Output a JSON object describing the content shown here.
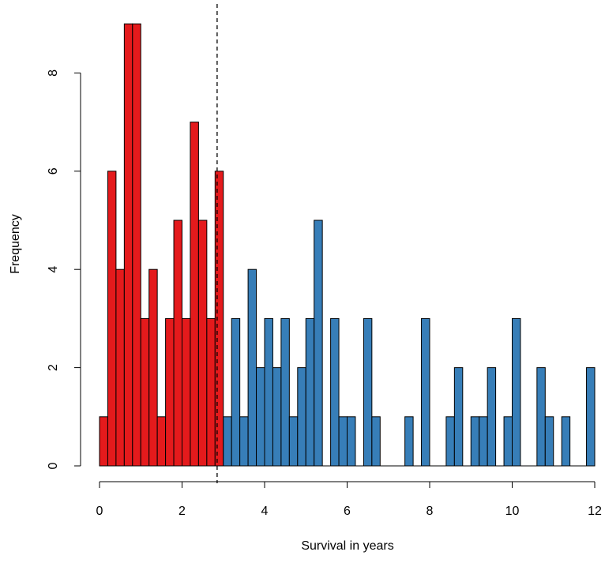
{
  "chart_data": {
    "type": "bar",
    "subtype": "histogram",
    "title": "",
    "xlabel": "Survival in years",
    "ylabel": "Frequency",
    "xlim": [
      0,
      12
    ],
    "ylim": [
      0,
      9
    ],
    "xticks": [
      0,
      2,
      4,
      6,
      8,
      10,
      12
    ],
    "yticks": [
      0,
      2,
      4,
      6,
      8
    ],
    "bin_width": 0.2,
    "threshold": 2.85,
    "grid": false,
    "legend": "none",
    "colors": {
      "below_threshold": "#e41a1c",
      "above_threshold": "#377eb8",
      "outline": "#000000"
    },
    "bins_x0": [
      0,
      0.2,
      0.4,
      0.6,
      0.8,
      1.0,
      1.2,
      1.4,
      1.6,
      1.8,
      2.0,
      2.2,
      2.4,
      2.6,
      2.8,
      3.0,
      3.2,
      3.4,
      3.6,
      3.8,
      4.0,
      4.2,
      4.4,
      4.6,
      4.8,
      5.0,
      5.2,
      5.4,
      5.6,
      5.8,
      6.0,
      6.2,
      6.4,
      6.6,
      6.8,
      7.0,
      7.2,
      7.4,
      7.6,
      7.8,
      8.0,
      8.2,
      8.4,
      8.6,
      8.8,
      9.0,
      9.2,
      9.4,
      9.6,
      9.8,
      10.0,
      10.2,
      10.4,
      10.6,
      10.8,
      11.0,
      11.2,
      11.4,
      11.6,
      11.8
    ],
    "counts": [
      1,
      6,
      4,
      9,
      9,
      3,
      4,
      1,
      3,
      5,
      3,
      7,
      5,
      3,
      6,
      1,
      3,
      1,
      4,
      2,
      3,
      2,
      3,
      1,
      2,
      3,
      5,
      0,
      3,
      1,
      1,
      0,
      3,
      1,
      0,
      0,
      0,
      1,
      0,
      3,
      0,
      0,
      1,
      2,
      0,
      1,
      1,
      2,
      0,
      1,
      3,
      0,
      0,
      2,
      1,
      0,
      1,
      0,
      0,
      2
    ],
    "groups": [
      "red",
      "red",
      "red",
      "red",
      "red",
      "red",
      "red",
      "red",
      "red",
      "red",
      "red",
      "red",
      "red",
      "red",
      "red",
      "blue",
      "blue",
      "blue",
      "blue",
      "blue",
      "blue",
      "blue",
      "blue",
      "blue",
      "blue",
      "blue",
      "blue",
      "blue",
      "blue",
      "blue",
      "blue",
      "blue",
      "blue",
      "blue",
      "blue",
      "blue",
      "blue",
      "blue",
      "blue",
      "blue",
      "blue",
      "blue",
      "blue",
      "blue",
      "blue",
      "blue",
      "blue",
      "blue",
      "blue",
      "blue",
      "blue",
      "blue",
      "blue",
      "blue",
      "blue",
      "blue",
      "blue",
      "blue",
      "blue",
      "blue"
    ]
  }
}
